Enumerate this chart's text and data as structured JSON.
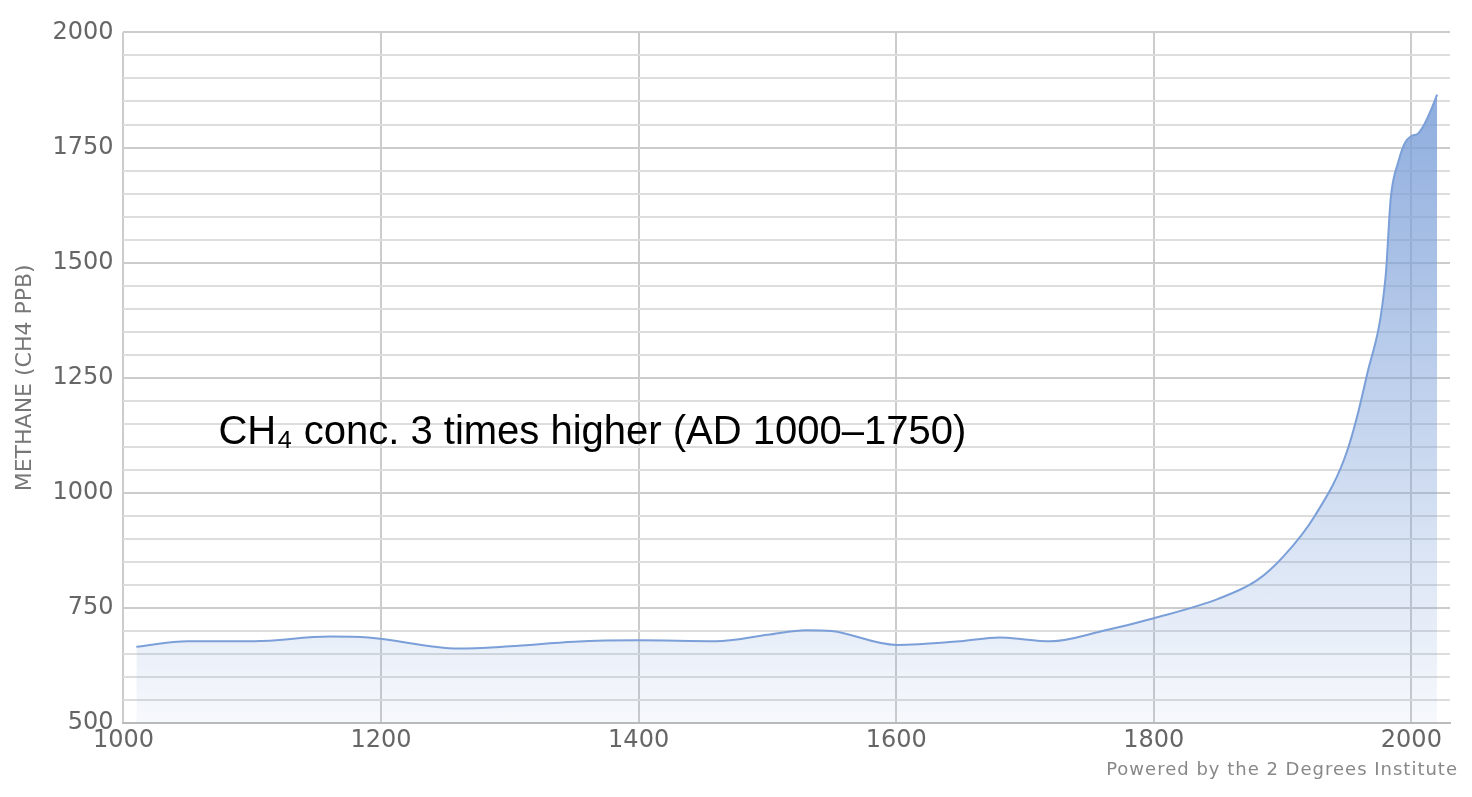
{
  "chart_data": {
    "type": "area",
    "ylabel": "METHANE (CH4 PPB)",
    "x": [
      1010,
      1050,
      1100,
      1160,
      1190,
      1260,
      1300,
      1350,
      1400,
      1460,
      1500,
      1530,
      1550,
      1600,
      1650,
      1680,
      1720,
      1760,
      1800,
      1850,
      1880,
      1900,
      1925,
      1950,
      1965,
      1980,
      1984,
      1990,
      1995,
      2000,
      2005,
      2010,
      2015,
      2020
    ],
    "series": [
      {
        "color": "#7b9fd8",
        "values": [
          666,
          678,
          678,
          688,
          686,
          662,
          667,
          677,
          680,
          678,
          692,
          702,
          700,
          670,
          678,
          686,
          678,
          700,
          728,
          770,
          810,
          860,
          950,
          1090,
          1250,
          1470,
          1640,
          1720,
          1760,
          1775,
          1780,
          1800,
          1830,
          1865
        ]
      }
    ],
    "xlim": [
      1000,
      2030
    ],
    "xticks": [
      1000,
      1200,
      1400,
      1600,
      1800,
      2000
    ],
    "ylim": [
      500,
      2000
    ],
    "yticks": [
      500,
      {
        "value": 550,
        "label": null
      },
      {
        "value": 600,
        "label": null
      },
      {
        "value": 650,
        "label": null
      },
      {
        "value": 700,
        "label": null
      },
      750,
      {
        "value": 800,
        "label": null
      },
      {
        "value": 850,
        "label": null
      },
      {
        "value": 900,
        "label": null
      },
      {
        "value": 950,
        "label": null
      },
      1000,
      {
        "value": 1050,
        "label": null
      },
      {
        "value": 1100,
        "label": null
      },
      {
        "value": 1150,
        "label": null
      },
      {
        "value": 1200,
        "label": null
      },
      1250,
      {
        "value": 1300,
        "label": null
      },
      {
        "value": 1350,
        "label": null
      },
      {
        "value": 1400,
        "label": null
      },
      {
        "value": 1450,
        "label": null
      },
      1500,
      {
        "value": 1550,
        "label": null
      },
      {
        "value": 1600,
        "label": null
      },
      {
        "value": 1650,
        "label": null
      },
      {
        "value": 1700,
        "label": null
      },
      1750,
      {
        "value": 1800,
        "label": null
      },
      {
        "value": 1850,
        "label": null
      },
      {
        "value": 1900,
        "label": null
      },
      {
        "value": 1950,
        "label": null
      },
      2000
    ],
    "grid": true,
    "legend": false,
    "marker": "none",
    "line_style": "solid",
    "annotations": [
      "CH₄ conc. 3 times higher (AD 1000–1750)",
      "Powered by the 2 Degrees Institute"
    ]
  }
}
